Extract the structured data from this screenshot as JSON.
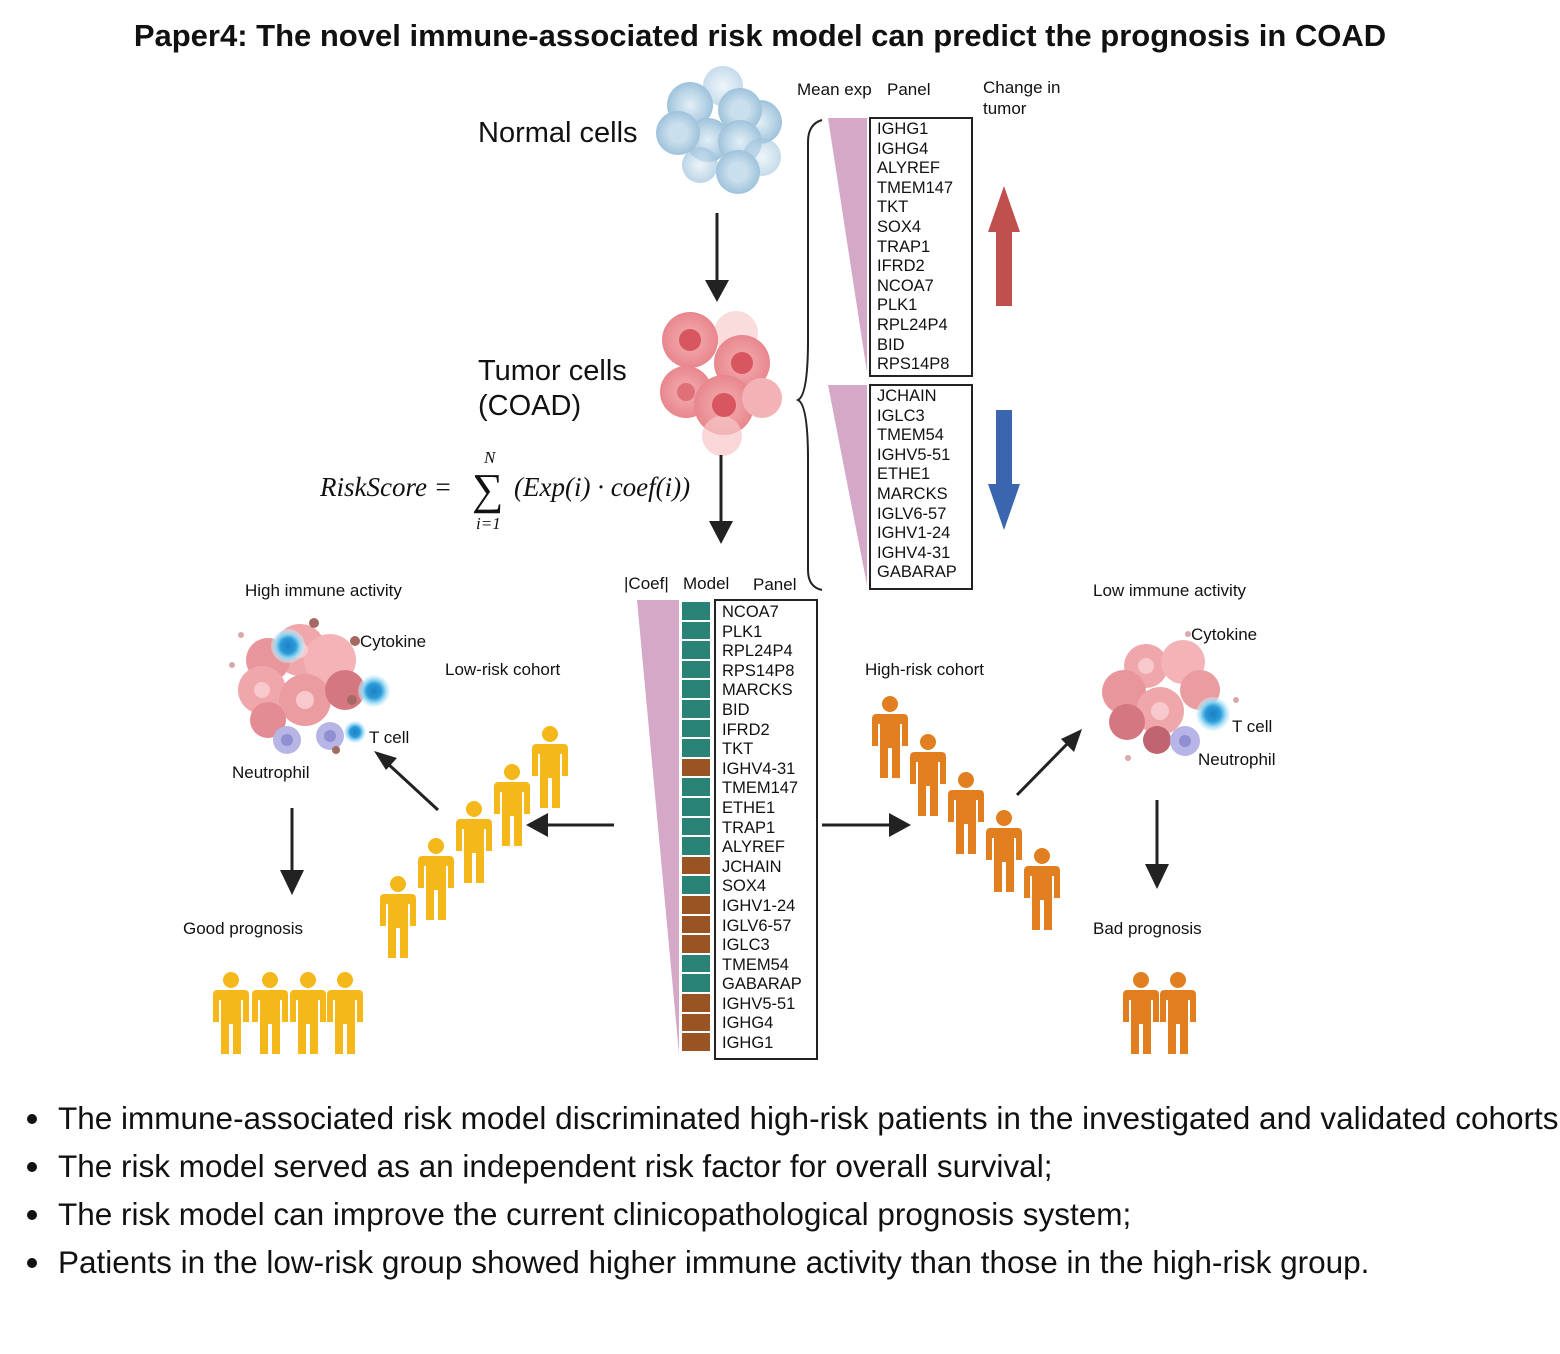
{
  "title": "Paper4: The novel immune-associated risk model can predict the prognosis in COAD",
  "labels": {
    "normal_cells": "Normal cells",
    "tumor_cells_line1": "Tumor cells",
    "tumor_cells_line2": "(COAD)",
    "mean_exp": "Mean exp",
    "panel_top": "Panel",
    "change_in_tumor_line1": "Change in",
    "change_in_tumor_line2": "tumor",
    "coef": "|Coef|",
    "model": "Model",
    "panel_model": "Panel",
    "high_immune_activity": "High immune activity",
    "low_immune_activity": "Low immune activity",
    "cytokine_left": "Cytokine",
    "cytokine_right": "Cytokine",
    "tcell_left": "T cell",
    "tcell_right": "T cell",
    "neutrophil_left": "Neutrophil",
    "neutrophil_right": "Neutrophil",
    "low_risk_cohort": "Low-risk cohort",
    "high_risk_cohort": "High-risk cohort",
    "good_prognosis": "Good prognosis",
    "bad_prognosis": "Bad prognosis"
  },
  "formula": {
    "lhs": "RiskScore =",
    "upper": "N",
    "lower": "i=1",
    "sigma": "∑",
    "body": "(Exp(i) · coef(i))"
  },
  "panel_up_genes": [
    "IGHG1",
    "IGHG4",
    "ALYREF",
    "TMEM147",
    "TKT",
    "SOX4",
    "TRAP1",
    "IFRD2",
    "NCOA7",
    "PLK1",
    "RPL24P4",
    "BID",
    "RPS14P8"
  ],
  "panel_down_genes": [
    "JCHAIN",
    "IGLC3",
    "TMEM54",
    "IGHV5-51",
    "ETHE1",
    "MARCKS",
    "IGLV6-57",
    "IGHV1-24",
    "IGHV4-31",
    "GABARAP"
  ],
  "model_genes": [
    {
      "name": "NCOA7",
      "sign": "teal"
    },
    {
      "name": "PLK1",
      "sign": "teal"
    },
    {
      "name": "RPL24P4",
      "sign": "teal"
    },
    {
      "name": "RPS14P8",
      "sign": "teal"
    },
    {
      "name": "MARCKS",
      "sign": "teal"
    },
    {
      "name": "BID",
      "sign": "teal"
    },
    {
      "name": "IFRD2",
      "sign": "teal"
    },
    {
      "name": "TKT",
      "sign": "teal"
    },
    {
      "name": "IGHV4-31",
      "sign": "brown"
    },
    {
      "name": "TMEM147",
      "sign": "teal"
    },
    {
      "name": "ETHE1",
      "sign": "teal"
    },
    {
      "name": "TRAP1",
      "sign": "teal"
    },
    {
      "name": "ALYREF",
      "sign": "teal"
    },
    {
      "name": "JCHAIN",
      "sign": "brown"
    },
    {
      "name": "SOX4",
      "sign": "teal"
    },
    {
      "name": "IGHV1-24",
      "sign": "brown"
    },
    {
      "name": "IGLV6-57",
      "sign": "brown"
    },
    {
      "name": "IGLC3",
      "sign": "brown"
    },
    {
      "name": "TMEM54",
      "sign": "teal"
    },
    {
      "name": "GABARAP",
      "sign": "teal"
    },
    {
      "name": "IGHV5-51",
      "sign": "brown"
    },
    {
      "name": "IGHG4",
      "sign": "brown"
    },
    {
      "name": "IGHG1",
      "sign": "brown"
    }
  ],
  "bullets": [
    "The immune-associated risk model discriminated high-risk patients in the investigated and validated cohorts;",
    "The risk model served as an independent risk factor for overall survival;",
    "The risk model can improve the current clinicopathological prognosis system;",
    "Patients in the low-risk group showed higher immune activity than those in the high-risk group."
  ],
  "colors": {
    "teal": "#2a8377",
    "brown": "#9a5424",
    "triangle": "#d5a8c8",
    "up_arrow": "#c0504d",
    "down_arrow": "#3a66b0",
    "low_risk_people": "#f4b81b",
    "high_risk_people": "#e07e20"
  }
}
